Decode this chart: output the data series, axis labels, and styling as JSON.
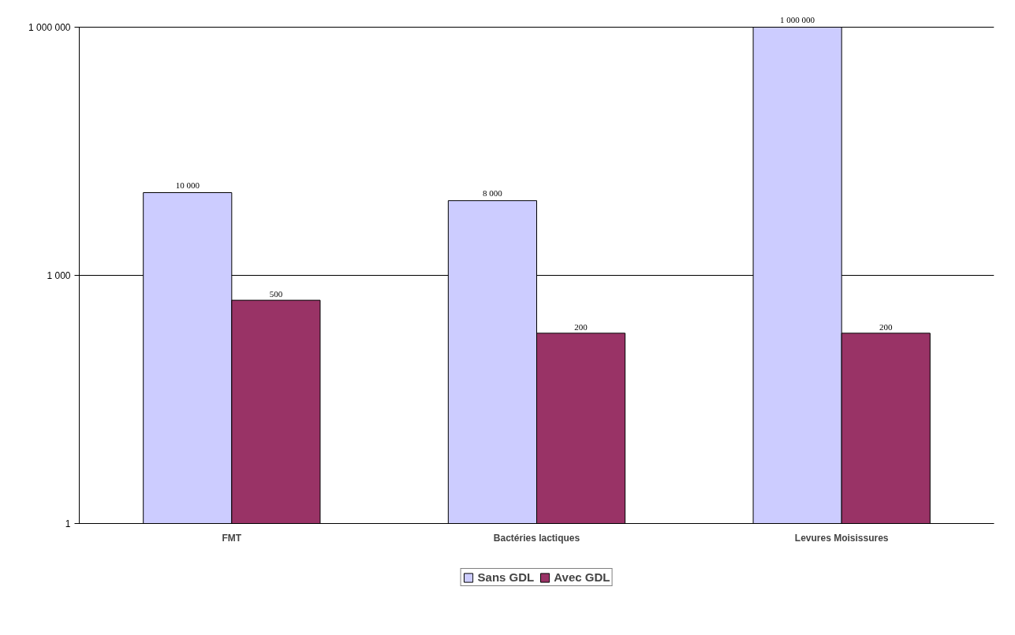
{
  "chart_data": {
    "type": "bar",
    "categories": [
      "FMT",
      "Bactéries lactiques",
      "Levures Moisissures"
    ],
    "series": [
      {
        "name": "Sans GDL",
        "color": "#ccccff",
        "values": [
          10000,
          8000,
          1000000
        ],
        "value_labels": [
          "10 000",
          "8 000",
          "1 000 000"
        ]
      },
      {
        "name": "Avec GDL",
        "color": "#993366",
        "values": [
          500,
          200,
          200
        ],
        "value_labels": [
          "500",
          "200",
          "200"
        ]
      }
    ],
    "log": true,
    "ylim": [
      1,
      1000000
    ],
    "yticks": [
      1,
      {
        "value": 1000,
        "label": "1 000"
      },
      {
        "value": 1000000,
        "label": "1 000 000"
      }
    ],
    "grid": "y",
    "legend": "bottom"
  }
}
